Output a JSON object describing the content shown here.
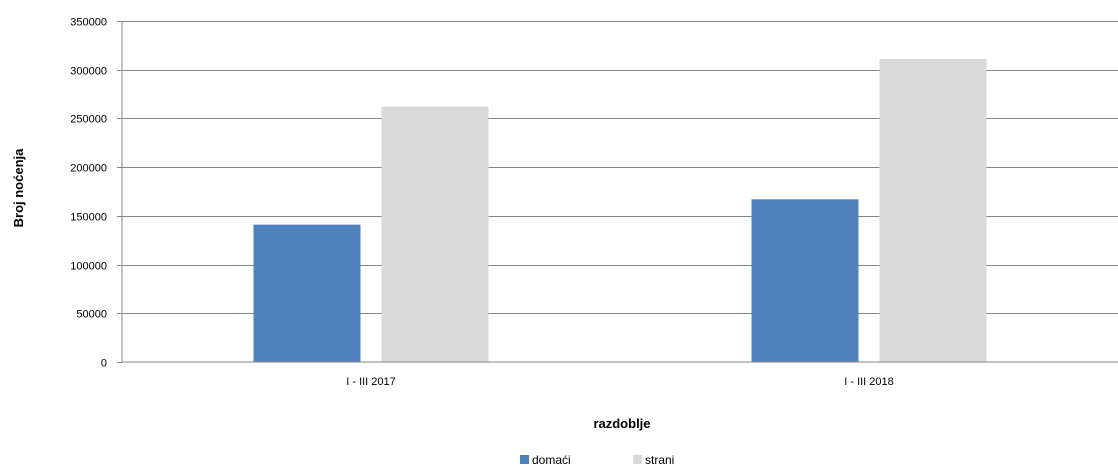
{
  "chart_data": {
    "type": "bar",
    "categories": [
      "I - III 2017",
      "I - III 2018"
    ],
    "series": [
      {
        "name": "domaći",
        "values": [
          141000,
          167000
        ],
        "color": "#4f81bd"
      },
      {
        "name": "strani",
        "values": [
          262000,
          311000
        ],
        "color": "#d9d9d9"
      }
    ],
    "xlabel": "razdoblje",
    "ylabel": "Broj noćenja",
    "ylim": [
      0,
      350000
    ],
    "yticks": [
      "0",
      "50000",
      "100000",
      "150000",
      "200000",
      "250000",
      "300000",
      "350000"
    ],
    "grid": true,
    "legend_position": "bottom"
  }
}
